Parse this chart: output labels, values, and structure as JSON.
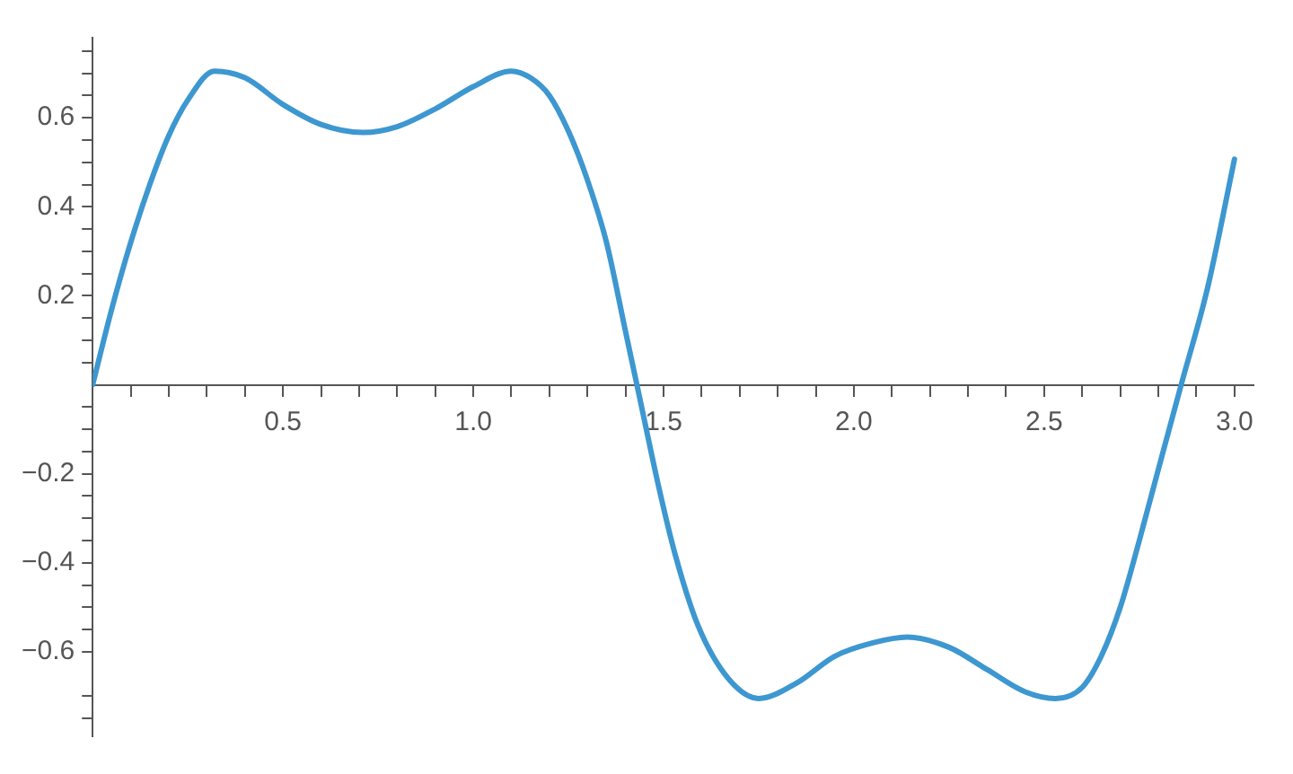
{
  "chart_data": {
    "type": "line",
    "xlim": [
      0,
      3.05
    ],
    "ylim": [
      -0.79,
      0.78
    ],
    "xticks": [
      {
        "value": 0.1,
        "label": null
      },
      {
        "value": 0.2,
        "label": null
      },
      {
        "value": 0.3,
        "label": null
      },
      {
        "value": 0.4,
        "label": null
      },
      0.5,
      {
        "value": 0.6,
        "label": null
      },
      {
        "value": 0.7,
        "label": null
      },
      {
        "value": 0.8,
        "label": null
      },
      {
        "value": 0.9,
        "label": null
      },
      {
        "value": 1.0,
        "label": "1.0"
      },
      {
        "value": 1.1,
        "label": null
      },
      {
        "value": 1.2,
        "label": null
      },
      {
        "value": 1.3,
        "label": null
      },
      {
        "value": 1.4,
        "label": null
      },
      1.5,
      {
        "value": 1.6,
        "label": null
      },
      {
        "value": 1.7,
        "label": null
      },
      {
        "value": 1.8,
        "label": null
      },
      {
        "value": 1.9,
        "label": null
      },
      {
        "value": 2.0,
        "label": "2.0"
      },
      {
        "value": 2.1,
        "label": null
      },
      {
        "value": 2.2,
        "label": null
      },
      {
        "value": 2.3,
        "label": null
      },
      {
        "value": 2.4,
        "label": null
      },
      2.5,
      {
        "value": 2.6,
        "label": null
      },
      {
        "value": 2.7,
        "label": null
      },
      {
        "value": 2.8,
        "label": null
      },
      {
        "value": 2.9,
        "label": null
      },
      {
        "value": 3.0,
        "label": "3.0"
      }
    ],
    "yticks": [
      {
        "value": -0.75,
        "label": null
      },
      {
        "value": -0.7,
        "label": null
      },
      {
        "value": -0.6,
        "label": "−0.6"
      },
      {
        "value": -0.55,
        "label": null
      },
      {
        "value": -0.5,
        "label": null
      },
      {
        "value": -0.45,
        "label": null
      },
      {
        "value": -0.4,
        "label": "−0.4"
      },
      {
        "value": -0.35,
        "label": null
      },
      {
        "value": -0.3,
        "label": null
      },
      {
        "value": -0.25,
        "label": null
      },
      {
        "value": -0.2,
        "label": "−0.2"
      },
      {
        "value": -0.15,
        "label": null
      },
      {
        "value": -0.1,
        "label": null
      },
      {
        "value": -0.05,
        "label": null
      },
      {
        "value": 0.05,
        "label": null
      },
      {
        "value": 0.1,
        "label": null
      },
      {
        "value": 0.15,
        "label": null
      },
      0.2,
      {
        "value": 0.25,
        "label": null
      },
      {
        "value": 0.3,
        "label": null
      },
      {
        "value": 0.35,
        "label": null
      },
      0.4,
      {
        "value": 0.45,
        "label": null
      },
      {
        "value": 0.5,
        "label": null
      },
      {
        "value": 0.55,
        "label": null
      },
      0.6,
      {
        "value": 0.65,
        "label": null
      },
      {
        "value": 0.7,
        "label": null
      },
      {
        "value": 0.75,
        "label": null
      }
    ],
    "grid": false,
    "legend": false,
    "marker": "none",
    "line_style": "solid",
    "series": [
      {
        "color": "#3d97d0",
        "x": [
          0,
          0.05,
          0.1,
          0.15,
          0.2,
          0.25,
          0.32,
          0.4,
          0.5,
          0.6,
          0.71,
          0.8,
          0.9,
          1.0,
          1.1,
          1.15,
          1.2,
          1.25,
          1.3,
          1.35,
          1.4,
          1.43,
          1.49,
          1.53,
          1.59,
          1.67,
          1.75,
          1.85,
          1.95,
          2.05,
          2.14,
          2.25,
          2.35,
          2.45,
          2.53,
          2.6,
          2.65,
          2.7,
          2.75,
          2.8,
          2.86,
          2.93,
          3.0
        ],
        "values": [
          0,
          0.17,
          0.32,
          0.45,
          0.56,
          0.64,
          0.705,
          0.69,
          0.63,
          0.585,
          0.567,
          0.58,
          0.62,
          0.67,
          0.705,
          0.69,
          0.65,
          0.57,
          0.46,
          0.32,
          0.12,
          0,
          -0.24,
          -0.38,
          -0.54,
          -0.66,
          -0.705,
          -0.67,
          -0.61,
          -0.58,
          -0.567,
          -0.59,
          -0.64,
          -0.69,
          -0.705,
          -0.68,
          -0.61,
          -0.5,
          -0.35,
          -0.19,
          0,
          0.22,
          0.507
        ]
      }
    ]
  }
}
